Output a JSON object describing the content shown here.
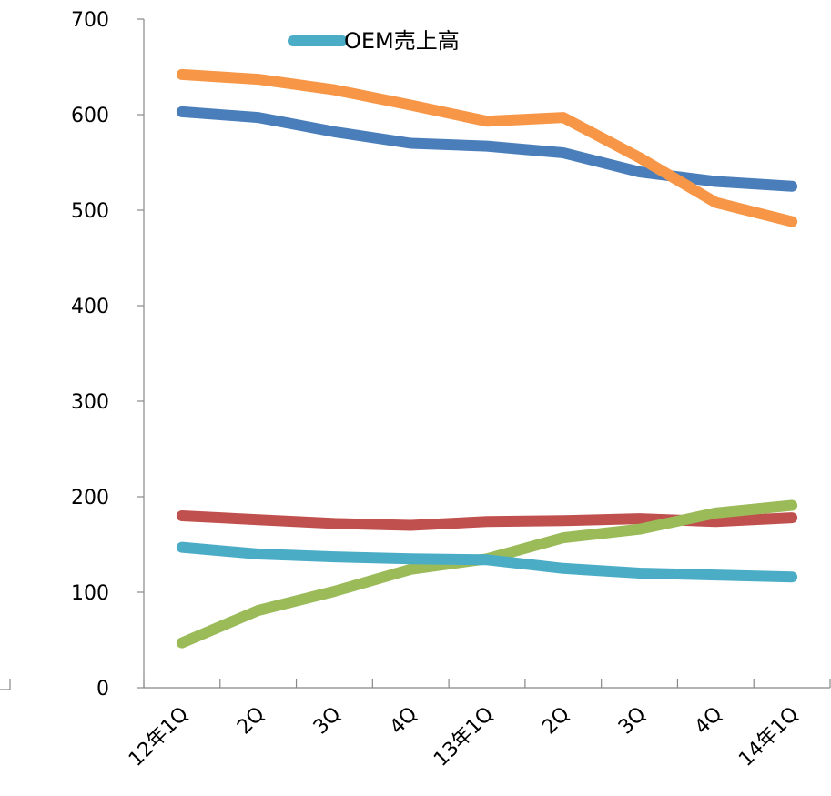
{
  "chart_data": {
    "type": "line",
    "categories": [
      "12年1Q",
      "2Q",
      "3Q",
      "4Q",
      "13年1Q",
      "2Q",
      "3Q",
      "4Q",
      "14年1Q"
    ],
    "ylim": [
      0,
      700
    ],
    "yticks": [
      "0",
      "100",
      "200",
      "300",
      "400",
      "500",
      "600",
      "700"
    ],
    "grid": false,
    "legend": {
      "position": "top-center",
      "entries": [
        "OEM売上高"
      ]
    },
    "series": [
      {
        "color": "#4A7EBB",
        "values": [
          603,
          597,
          582,
          570,
          567,
          560,
          540,
          530,
          525
        ]
      },
      {
        "color": "#F79646",
        "values": [
          642,
          637,
          626,
          610,
          593,
          597,
          555,
          508,
          488
        ]
      },
      {
        "color": "#C0504D",
        "values": [
          180,
          176,
          172,
          170,
          174,
          175,
          177,
          174,
          178
        ]
      },
      {
        "color": "#9BBB59",
        "values": [
          47,
          81,
          101,
          124,
          135,
          157,
          166,
          183,
          191
        ]
      },
      {
        "name": "OEM売上高",
        "color": "#4BACC6",
        "values": [
          147,
          140,
          137,
          135,
          134,
          125,
          120,
          118,
          116
        ]
      }
    ]
  }
}
